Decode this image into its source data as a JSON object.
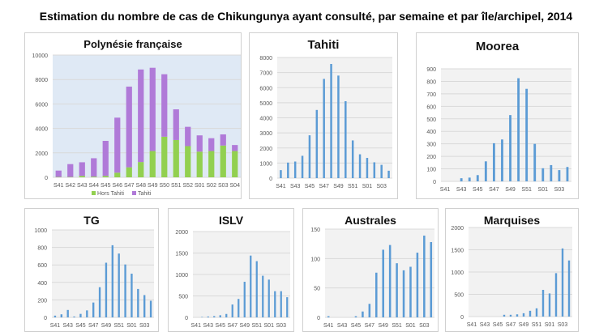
{
  "title": "Estimation du nombre de cas de Chikungunya ayant consulté, par semaine et par île/archipel, 2014",
  "colors": {
    "bar": "#5b9bd5",
    "hors_tahiti": "#92d050",
    "tahiti": "#b07ad8",
    "plot_bg": "#f2f2f2",
    "plot_bg_pf": "#dfe9f5",
    "grid": "#d9d9d9"
  },
  "chart_data": [
    {
      "id": "pf",
      "type": "bar",
      "stacked": true,
      "title": "Polynésie française",
      "categories": [
        "S41",
        "S42",
        "S43",
        "S44",
        "S45",
        "S46",
        "S47",
        "S48",
        "S49",
        "S50",
        "S51",
        "S52",
        "S01",
        "S02",
        "S03",
        "S04"
      ],
      "tick_labels": [
        "S41",
        "S42",
        "S43",
        "S44",
        "S45",
        "S46",
        "S47",
        "S48",
        "S49",
        "S50",
        "S51",
        "S52",
        "S01",
        "S02",
        "S03",
        "S04"
      ],
      "series": [
        {
          "name": "Hors Tahiti",
          "values": [
            30,
            30,
            120,
            60,
            120,
            380,
            820,
            1250,
            2150,
            3320,
            3050,
            2550,
            2100,
            2150,
            2600,
            2150
          ]
        },
        {
          "name": "Tahiti",
          "values": [
            520,
            1050,
            1110,
            1500,
            2860,
            4500,
            6600,
            7570,
            6810,
            5110,
            2510,
            1580,
            1330,
            1050,
            910,
            490
          ]
        }
      ],
      "yticks": [
        0,
        2000,
        4000,
        6000,
        8000,
        10000
      ],
      "ylim": [
        0,
        10000
      ],
      "legend": "bottom"
    },
    {
      "id": "tahiti",
      "type": "bar",
      "title": "Tahiti",
      "categories": [
        "S41",
        "S42",
        "S43",
        "S44",
        "S45",
        "S46",
        "S47",
        "S48",
        "S49",
        "S50",
        "S51",
        "S52",
        "S01",
        "S02",
        "S03",
        "S04"
      ],
      "tick_labels": [
        "S41",
        "",
        "S43",
        "",
        "S45",
        "",
        "S47",
        "",
        "S49",
        "",
        "S51",
        "",
        "S01",
        "",
        "S03",
        ""
      ],
      "values": [
        530,
        1030,
        1100,
        1480,
        2840,
        4520,
        6580,
        7570,
        6800,
        5100,
        2500,
        1580,
        1340,
        1050,
        880,
        490
      ],
      "yticks": [
        0,
        1000,
        2000,
        3000,
        4000,
        5000,
        6000,
        7000,
        8000
      ],
      "ylim": [
        0,
        8000
      ]
    },
    {
      "id": "moorea",
      "type": "bar",
      "title": "Moorea",
      "categories": [
        "S41",
        "S42",
        "S43",
        "S44",
        "S45",
        "S46",
        "S47",
        "S48",
        "S49",
        "S50",
        "S51",
        "S52",
        "S01",
        "S02",
        "S03",
        "S04"
      ],
      "tick_labels": [
        "S41",
        "",
        "S43",
        "",
        "S45",
        "",
        "S47",
        "",
        "S49",
        "",
        "S51",
        "",
        "S01",
        "",
        "S03",
        ""
      ],
      "values": [
        0,
        0,
        25,
        30,
        50,
        160,
        305,
        335,
        530,
        825,
        740,
        300,
        105,
        130,
        90,
        115
      ],
      "yticks": [
        0,
        100,
        200,
        300,
        400,
        500,
        600,
        700,
        800,
        900
      ],
      "ylim": [
        0,
        900
      ]
    },
    {
      "id": "tg",
      "type": "bar",
      "title": "TG",
      "categories": [
        "S41",
        "S42",
        "S43",
        "S44",
        "S45",
        "S46",
        "S47",
        "S48",
        "S49",
        "S50",
        "S51",
        "S52",
        "S01",
        "S02",
        "S03",
        "S04"
      ],
      "tick_labels": [
        "S41",
        "",
        "S43",
        "",
        "S45",
        "",
        "S47",
        "",
        "S49",
        "",
        "S51",
        "",
        "S01",
        "",
        "S03",
        ""
      ],
      "values": [
        20,
        35,
        85,
        10,
        40,
        80,
        170,
        345,
        625,
        825,
        730,
        605,
        500,
        325,
        255,
        190
      ],
      "yticks": [
        0,
        200,
        400,
        600,
        800,
        1000
      ],
      "ylim": [
        0,
        1000
      ]
    },
    {
      "id": "islv",
      "type": "bar",
      "title": "ISLV",
      "categories": [
        "S41",
        "S42",
        "S43",
        "S44",
        "S45",
        "S46",
        "S47",
        "S48",
        "S49",
        "S50",
        "S51",
        "S52",
        "S01",
        "S02",
        "S03",
        "S04"
      ],
      "tick_labels": [
        "S41",
        "",
        "S43",
        "",
        "S45",
        "",
        "S47",
        "",
        "S49",
        "",
        "S51",
        "",
        "S01",
        "",
        "S03",
        ""
      ],
      "values": [
        0,
        10,
        20,
        30,
        50,
        80,
        300,
        430,
        830,
        1440,
        1310,
        970,
        880,
        610,
        610,
        470
      ],
      "yticks": [
        0,
        500,
        1000,
        1500,
        2000
      ],
      "ylim": [
        0,
        2000
      ]
    },
    {
      "id": "australes",
      "type": "bar",
      "title": "Australes",
      "categories": [
        "S41",
        "S42",
        "S43",
        "S44",
        "S45",
        "S46",
        "S47",
        "S48",
        "S49",
        "S50",
        "S51",
        "S52",
        "S01",
        "S02",
        "S03",
        "S04"
      ],
      "tick_labels": [
        "S41",
        "",
        "S43",
        "",
        "S45",
        "",
        "S47",
        "",
        "S49",
        "",
        "S51",
        "",
        "S01",
        "",
        "S03",
        ""
      ],
      "values": [
        2,
        0,
        0,
        0,
        2,
        10,
        23,
        76,
        115,
        123,
        92,
        80,
        86,
        110,
        139,
        128
      ],
      "yticks": [
        0,
        50,
        100,
        150
      ],
      "ylim": [
        0,
        150
      ]
    },
    {
      "id": "marquises",
      "type": "bar",
      "title": "Marquises",
      "categories": [
        "S41",
        "S42",
        "S43",
        "S44",
        "S45",
        "S46",
        "S47",
        "S48",
        "S49",
        "S50",
        "S51",
        "S52",
        "S01",
        "S02",
        "S03",
        "S04"
      ],
      "tick_labels": [
        "S41",
        "",
        "S43",
        "",
        "S45",
        "",
        "S47",
        "",
        "S49",
        "",
        "S51",
        "",
        "S01",
        "",
        "S03",
        ""
      ],
      "values": [
        0,
        0,
        0,
        0,
        0,
        40,
        40,
        50,
        75,
        130,
        185,
        600,
        520,
        975,
        1530,
        1260
      ],
      "yticks": [
        0,
        500,
        1000,
        1500,
        2000
      ],
      "ylim": [
        0,
        2000
      ]
    }
  ]
}
